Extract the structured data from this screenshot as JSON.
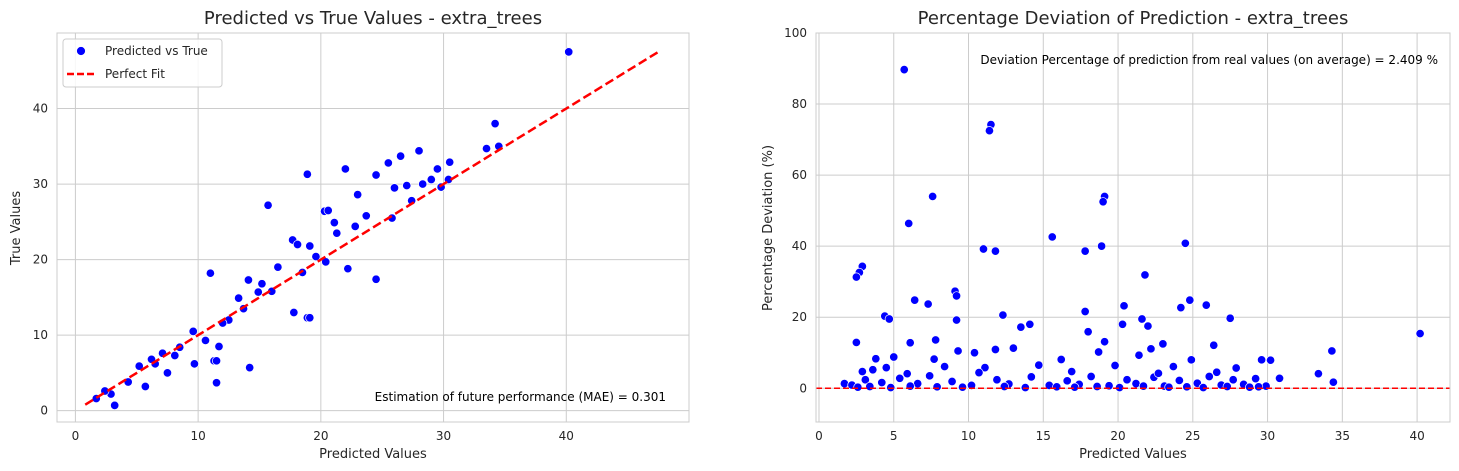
{
  "colors": {
    "points": "#0000ff",
    "point_edge": "#ffffff",
    "reference_line": "#ff0000",
    "grid": "#cccccc",
    "text": "#262626"
  },
  "chart_data": [
    {
      "type": "scatter",
      "title": "Predicted vs True Values - extra_trees",
      "xlabel": "Predicted Values",
      "ylabel": "True Values",
      "xlim": [
        -1.5,
        50
      ],
      "ylim": [
        -1.5,
        50
      ],
      "xticks": [
        0,
        10,
        20,
        30,
        40
      ],
      "yticks": [
        0,
        10,
        20,
        30,
        40
      ],
      "grid": true,
      "legend": {
        "placement": "upper-left",
        "entries": [
          {
            "label": "Predicted vs True",
            "kind": "marker"
          },
          {
            "label": "Perfect Fit",
            "kind": "dashed-line"
          }
        ]
      },
      "annotation": "Estimation of future performance (MAE) = 0.301",
      "reference_line": {
        "name": "Perfect Fit",
        "points": [
          [
            0.8,
            0.8
          ],
          [
            47.5,
            47.5
          ]
        ],
        "style": "dashed"
      },
      "series": [
        {
          "name": "Predicted vs True",
          "points": [
            [
              40.2,
              47.5
            ],
            [
              34.2,
              38
            ],
            [
              34.5,
              35
            ],
            [
              33.5,
              34.7
            ],
            [
              28,
              34.4
            ],
            [
              26.5,
              33.7
            ],
            [
              25.5,
              32.8
            ],
            [
              22,
              32
            ],
            [
              29.5,
              32
            ],
            [
              30.5,
              32.9
            ],
            [
              18.9,
              31.3
            ],
            [
              24.5,
              31.2
            ],
            [
              23,
              28.6
            ],
            [
              27,
              29.8
            ],
            [
              15.7,
              27.2
            ],
            [
              20.3,
              26.4
            ],
            [
              20.6,
              26.5
            ],
            [
              17.7,
              22.6
            ],
            [
              18.1,
              22
            ],
            [
              19.1,
              21.8
            ],
            [
              22.2,
              18.8
            ],
            [
              24.5,
              17.4
            ],
            [
              17.8,
              13
            ],
            [
              18.9,
              12.3
            ],
            [
              19.1,
              12.3
            ],
            [
              11,
              18.2
            ],
            [
              14.1,
              17.3
            ],
            [
              11.3,
              6.6
            ],
            [
              11.5,
              6.6
            ],
            [
              11.7,
              8.5
            ],
            [
              11.5,
              3.7
            ],
            [
              14.2,
              5.7
            ],
            [
              3.2,
              0.7
            ],
            [
              5.7,
              3.2
            ],
            [
              7.5,
              5
            ],
            [
              9.7,
              6.2
            ],
            [
              12.5,
              12
            ],
            [
              13.3,
              14.9
            ],
            [
              26,
              29.5
            ],
            [
              28.3,
              30
            ],
            [
              29,
              30.6
            ],
            [
              21.3,
              23.5
            ],
            [
              16.5,
              19
            ],
            [
              15.2,
              16.8
            ],
            [
              13.7,
              13.5
            ],
            [
              10.6,
              9.3
            ],
            [
              8.1,
              7.3
            ],
            [
              6.5,
              6.2
            ],
            [
              6.2,
              6.8
            ],
            [
              5.2,
              5.9
            ],
            [
              4.3,
              3.8
            ],
            [
              2.9,
              2.2
            ],
            [
              2.4,
              2.6
            ],
            [
              1.7,
              1.6
            ],
            [
              21.1,
              24.9
            ],
            [
              23.7,
              25.8
            ],
            [
              22.8,
              24.4
            ],
            [
              19.6,
              20.4
            ],
            [
              18.5,
              18.3
            ],
            [
              25.8,
              25.5
            ],
            [
              27.4,
              27.8
            ],
            [
              29.8,
              29.6
            ],
            [
              30.4,
              30.6
            ],
            [
              9.6,
              10.5
            ],
            [
              12,
              11.6
            ],
            [
              16,
              15.8
            ],
            [
              20.4,
              19.7
            ],
            [
              14.9,
              15.7
            ],
            [
              8.5,
              8.4
            ],
            [
              7.1,
              7.6
            ]
          ]
        }
      ]
    },
    {
      "type": "scatter",
      "title": "Percentage Deviation of Prediction - extra_trees",
      "xlabel": "Predicted Values",
      "ylabel": "Percentage Deviation (%)",
      "xlim": [
        -0.2,
        42.2
      ],
      "ylim": [
        -9.5,
        100
      ],
      "xticks": [
        0,
        5,
        10,
        15,
        20,
        25,
        30,
        35,
        40
      ],
      "yticks": [
        0,
        20,
        40,
        60,
        80,
        100
      ],
      "grid": true,
      "annotation": "Deviation Percentage of prediction from real values (on average) = 2.409 %",
      "reference_line": {
        "y": 0,
        "style": "dashed"
      },
      "series": [
        {
          "points": [
            [
              5.7,
              89.7
            ],
            [
              11.5,
              74.2
            ],
            [
              11.4,
              72.5
            ],
            [
              7.6,
              54
            ],
            [
              19.1,
              54
            ],
            [
              19,
              52.5
            ],
            [
              6,
              46.4
            ],
            [
              15.6,
              42.6
            ],
            [
              24.5,
              40.8
            ],
            [
              18.9,
              40
            ],
            [
              11,
              39.2
            ],
            [
              11.8,
              38.6
            ],
            [
              17.8,
              38.6
            ],
            [
              2.9,
              34.3
            ],
            [
              2.7,
              32.6
            ],
            [
              2.5,
              31.3
            ],
            [
              21.8,
              31.9
            ],
            [
              9.1,
              27.3
            ],
            [
              9.2,
              26
            ],
            [
              6.4,
              24.8
            ],
            [
              7.3,
              23.7
            ],
            [
              24.8,
              24.8
            ],
            [
              20.4,
              23.2
            ],
            [
              25.9,
              23.4
            ],
            [
              24.2,
              22.7
            ],
            [
              17.8,
              21.6
            ],
            [
              12.3,
              20.6
            ],
            [
              4.4,
              20.3
            ],
            [
              4.7,
              19.5
            ],
            [
              9.2,
              19.2
            ],
            [
              27.5,
              19.7
            ],
            [
              21.6,
              19.5
            ],
            [
              20.3,
              18
            ],
            [
              22,
              17.5
            ],
            [
              14.1,
              18
            ],
            [
              13.5,
              17.2
            ],
            [
              18,
              15.9
            ],
            [
              40.2,
              15.4
            ],
            [
              7.8,
              13.6
            ],
            [
              2.5,
              12.9
            ],
            [
              6.1,
              12.8
            ],
            [
              19.1,
              13.1
            ],
            [
              23,
              12.5
            ],
            [
              26.4,
              12.1
            ],
            [
              9.3,
              10.5
            ],
            [
              10.4,
              10
            ],
            [
              11.8,
              10.9
            ],
            [
              13,
              11.3
            ],
            [
              18.7,
              10.2
            ],
            [
              22.2,
              11.1
            ],
            [
              34.3,
              10.5
            ],
            [
              3.8,
              8.3
            ],
            [
              5,
              8.8
            ],
            [
              7.7,
              8.2
            ],
            [
              16.2,
              8.1
            ],
            [
              21.4,
              9.3
            ],
            [
              24.9,
              8
            ],
            [
              29.6,
              8
            ],
            [
              30.2,
              7.9
            ],
            [
              2.9,
              4.7
            ],
            [
              3.6,
              5.2
            ],
            [
              4.5,
              5.8
            ],
            [
              8.4,
              6.1
            ],
            [
              11.1,
              5.8
            ],
            [
              14.7,
              6.5
            ],
            [
              19.8,
              6.4
            ],
            [
              23.7,
              6.1
            ],
            [
              27.9,
              5.7
            ],
            [
              33.4,
              4.1
            ],
            [
              1.7,
              1.3
            ],
            [
              2.2,
              0.9
            ],
            [
              3.1,
              2.4
            ],
            [
              4.2,
              1.6
            ],
            [
              5.4,
              2.8
            ],
            [
              6.6,
              1.3
            ],
            [
              7.4,
              3.5
            ],
            [
              8.9,
              1.9
            ],
            [
              10.2,
              0.8
            ],
            [
              11.9,
              2.4
            ],
            [
              12.7,
              1.2
            ],
            [
              14.2,
              3.2
            ],
            [
              15.4,
              0.8
            ],
            [
              16.6,
              2.1
            ],
            [
              17.4,
              1.1
            ],
            [
              18.2,
              3.3
            ],
            [
              19.4,
              0.7
            ],
            [
              20.6,
              2.4
            ],
            [
              21.2,
              1.3
            ],
            [
              22.4,
              3.1
            ],
            [
              23.1,
              0.6
            ],
            [
              24.1,
              2.2
            ],
            [
              25.3,
              1.4
            ],
            [
              26.1,
              3.3
            ],
            [
              26.9,
              0.9
            ],
            [
              27.7,
              2.4
            ],
            [
              28.4,
              1.1
            ],
            [
              29.2,
              2.7
            ],
            [
              29.9,
              0.6
            ],
            [
              30.8,
              2.8
            ],
            [
              34.4,
              1.7
            ],
            [
              2.6,
              0.3
            ],
            [
              3.4,
              0.5
            ],
            [
              4.8,
              0.2
            ],
            [
              6.1,
              0.6
            ],
            [
              7.9,
              0.4
            ],
            [
              9.6,
              0.3
            ],
            [
              12.4,
              0.5
            ],
            [
              13.8,
              0.2
            ],
            [
              15.9,
              0.4
            ],
            [
              17.1,
              0.3
            ],
            [
              18.6,
              0.5
            ],
            [
              20.1,
              0.2
            ],
            [
              21.7,
              0.6
            ],
            [
              23.4,
              0.3
            ],
            [
              24.6,
              0.4
            ],
            [
              25.7,
              0.2
            ],
            [
              27.3,
              0.5
            ],
            [
              28.8,
              0.3
            ],
            [
              29.4,
              0.4
            ],
            [
              5.9,
              4.1
            ],
            [
              10.7,
              4.4
            ],
            [
              16.9,
              4.7
            ],
            [
              22.7,
              4.2
            ],
            [
              26.6,
              4.5
            ]
          ]
        }
      ]
    }
  ]
}
